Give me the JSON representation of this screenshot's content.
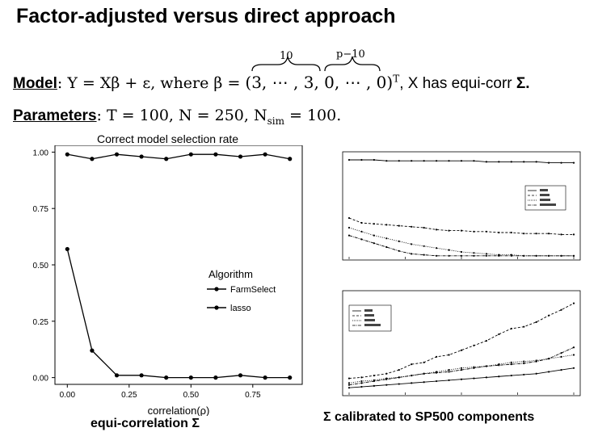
{
  "header": {
    "title": "Factor-adjusted versus direct approach",
    "brace_left_label": "10",
    "brace_right_label": "p−10",
    "model_label": "Model",
    "model_text_1": ": Y = Xβ + ε, where β = ",
    "model_vector": "(3, ⋯ , 3, 0, ⋯ , 0)",
    "model_sup": "T",
    "model_text_2": ", X has equi-corr ",
    "model_sigma": "Σ.",
    "params_label": "Parameters",
    "params_text": ": T = 100, N = 250, N",
    "params_sub": "sim",
    "params_text_2": " = 100."
  },
  "left_chart": {
    "caption": "equi-correlation Σ"
  },
  "right_panel": {
    "caption": "Σ calibrated to SP500 components"
  },
  "chart_data": [
    {
      "type": "line",
      "title": "Correct model selection rate",
      "xlabel": "correlation(ρ)",
      "ylabel": "",
      "x": [
        0.0,
        0.1,
        0.2,
        0.3,
        0.4,
        0.5,
        0.6,
        0.7,
        0.8,
        0.9
      ],
      "xlim": [
        -0.05,
        0.95
      ],
      "ylim": [
        -0.03,
        1.03
      ],
      "x_ticks": [
        "0.00",
        "0.25",
        "0.50",
        "0.75"
      ],
      "x_tick_values": [
        0.0,
        0.25,
        0.5,
        0.75
      ],
      "y_ticks": [
        "0.00",
        "0.25",
        "0.50",
        "0.75",
        "1.00"
      ],
      "y_tick_values": [
        0.0,
        0.25,
        0.5,
        0.75,
        1.0
      ],
      "legend_title": "Algorithm",
      "legend_position": "center-right",
      "grid": false,
      "series": [
        {
          "name": "FarmSelect",
          "values": [
            0.99,
            0.97,
            0.99,
            0.98,
            0.97,
            0.99,
            0.99,
            0.98,
            0.99,
            0.97
          ]
        },
        {
          "name": "lasso",
          "values": [
            0.57,
            0.12,
            0.01,
            0.01,
            0.0,
            0.0,
            0.0,
            0.01,
            0.0,
            0.0
          ]
        }
      ]
    },
    {
      "type": "line",
      "title": "",
      "xlabel": "",
      "ylabel": "",
      "x": [
        0,
        1,
        2,
        3,
        4,
        5,
        6,
        7,
        8,
        9,
        10,
        11,
        12,
        13,
        14,
        15,
        16,
        17,
        18
      ],
      "xlim": [
        0,
        18
      ],
      "ylim": [
        0,
        1.05
      ],
      "legend_position": "right",
      "grid": false,
      "series": [
        {
          "values": [
            1.0,
            1.0,
            1.0,
            0.99,
            0.99,
            0.99,
            0.99,
            0.99,
            0.99,
            0.99,
            0.99,
            0.98,
            0.98,
            0.98,
            0.98,
            0.98,
            0.97,
            0.97,
            0.97
          ]
        },
        {
          "values": [
            0.4,
            0.35,
            0.34,
            0.33,
            0.32,
            0.31,
            0.3,
            0.28,
            0.27,
            0.27,
            0.26,
            0.26,
            0.25,
            0.25,
            0.24,
            0.24,
            0.24,
            0.23,
            0.23
          ]
        },
        {
          "values": [
            0.3,
            0.26,
            0.22,
            0.19,
            0.16,
            0.13,
            0.11,
            0.09,
            0.07,
            0.05,
            0.04,
            0.03,
            0.02,
            0.02,
            0.01,
            0.01,
            0.01,
            0.01,
            0.01
          ]
        },
        {
          "values": [
            0.22,
            0.18,
            0.14,
            0.1,
            0.06,
            0.03,
            0.02,
            0.01,
            0.01,
            0.01,
            0.01,
            0.01,
            0.01,
            0.01,
            0.01,
            0.01,
            0.01,
            0.01,
            0.01
          ]
        }
      ]
    },
    {
      "type": "line",
      "title": "",
      "xlabel": "",
      "ylabel": "",
      "x": [
        0,
        1,
        2,
        3,
        4,
        5,
        6,
        7,
        8,
        9,
        10,
        11,
        12,
        13,
        14,
        15,
        16,
        17,
        18
      ],
      "xlim": [
        0,
        18
      ],
      "ylim": [
        0,
        1.05
      ],
      "legend_position": "top-left",
      "grid": false,
      "series": [
        {
          "values": [
            0.05,
            0.06,
            0.07,
            0.08,
            0.09,
            0.1,
            0.11,
            0.12,
            0.13,
            0.14,
            0.15,
            0.16,
            0.17,
            0.18,
            0.19,
            0.2,
            0.22,
            0.24,
            0.26
          ]
        },
        {
          "values": [
            0.15,
            0.16,
            0.18,
            0.2,
            0.24,
            0.3,
            0.32,
            0.38,
            0.4,
            0.45,
            0.5,
            0.55,
            0.62,
            0.68,
            0.7,
            0.75,
            0.82,
            0.88,
            0.95
          ]
        },
        {
          "values": [
            0.1,
            0.12,
            0.13,
            0.15,
            0.16,
            0.18,
            0.2,
            0.22,
            0.24,
            0.26,
            0.27,
            0.28,
            0.3,
            0.32,
            0.33,
            0.34,
            0.36,
            0.38,
            0.4
          ]
        },
        {
          "values": [
            0.08,
            0.1,
            0.12,
            0.14,
            0.16,
            0.18,
            0.2,
            0.21,
            0.22,
            0.24,
            0.26,
            0.28,
            0.29,
            0.3,
            0.31,
            0.33,
            0.36,
            0.42,
            0.48
          ]
        }
      ]
    }
  ]
}
